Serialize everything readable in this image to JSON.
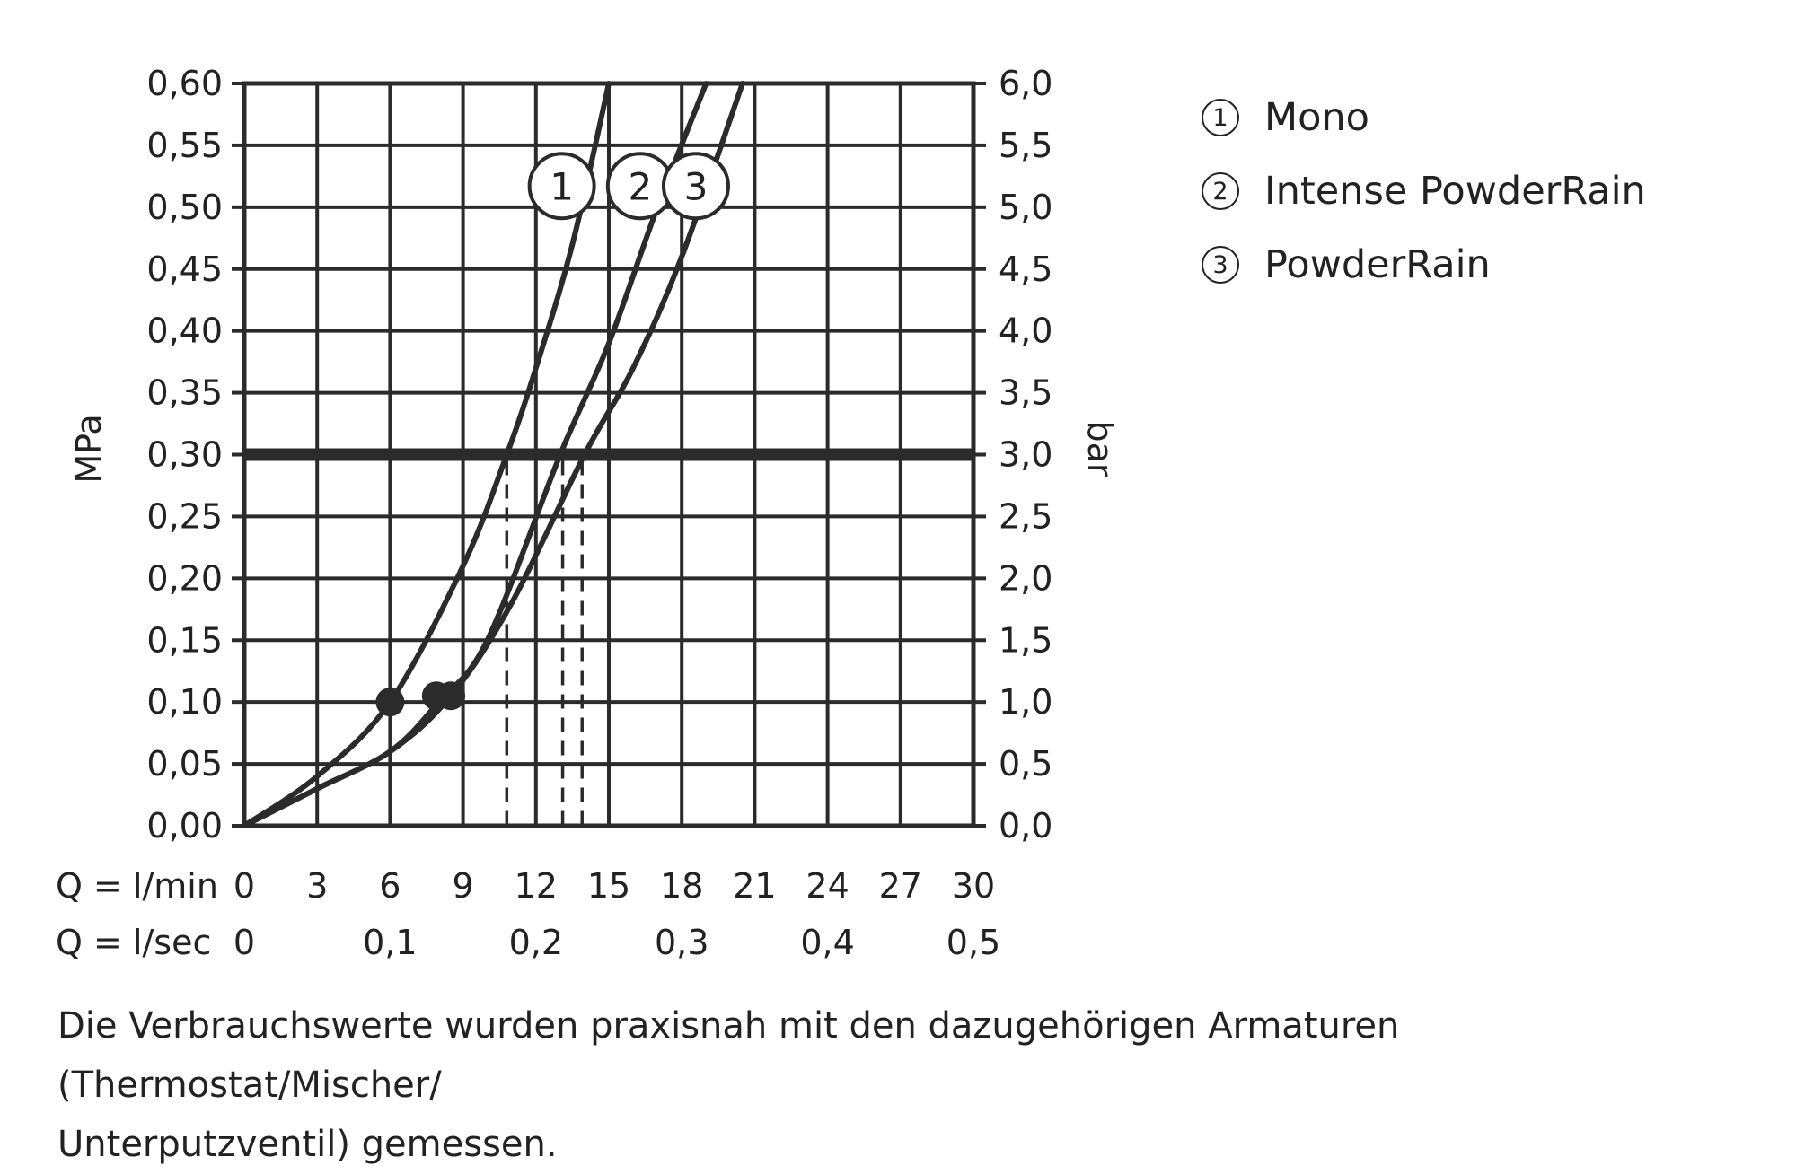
{
  "chart_data": {
    "type": "line",
    "xlabel_primary": "Q = l/min",
    "xlabel_secondary": "Q = l/sec",
    "ylabel_left": "MPa",
    "ylabel_right": "bar",
    "xlim": [
      0,
      30
    ],
    "ylim": [
      0,
      0.6
    ],
    "x_ticks": [
      "0",
      "3",
      "6",
      "9",
      "12",
      "15",
      "18",
      "21",
      "24",
      "27",
      "30"
    ],
    "x_ticks_secondary": [
      {
        "value": 0,
        "label": "0"
      },
      {
        "value": 6,
        "label": "0,1"
      },
      {
        "value": 12,
        "label": "0,2"
      },
      {
        "value": 18,
        "label": "0,3"
      },
      {
        "value": 24,
        "label": "0,4"
      },
      {
        "value": 30,
        "label": "0,5"
      }
    ],
    "y_ticks_left": [
      "0,00",
      "0,05",
      "0,10",
      "0,15",
      "0,20",
      "0,25",
      "0,30",
      "0,35",
      "0,40",
      "0,45",
      "0,50",
      "0,55",
      "0,60"
    ],
    "y_ticks_right": [
      "0,0",
      "0,5",
      "1,0",
      "1,5",
      "2,0",
      "2,5",
      "3,0",
      "3,5",
      "4,0",
      "4,5",
      "5,0",
      "5,5",
      "6,0"
    ],
    "grid": true,
    "reference_line_y": 0.3,
    "series": [
      {
        "label": "1",
        "x": [
          0,
          3,
          6,
          9,
          10.8,
          12,
          13.5,
          15
        ],
        "y": [
          0,
          0.04,
          0.1,
          0.21,
          0.3,
          0.37,
          0.47,
          0.6
        ],
        "min_point": [
          6,
          0.1
        ],
        "drop_x": 10.8
      },
      {
        "label": "2",
        "x": [
          0,
          3,
          6,
          8,
          10,
          13,
          15,
          17,
          19
        ],
        "y": [
          0,
          0.03,
          0.06,
          0.1,
          0.15,
          0.3,
          0.39,
          0.5,
          0.6
        ],
        "min_point": [
          7.9,
          0.105
        ],
        "drop_x": 13.1
      },
      {
        "label": "3",
        "x": [
          0,
          3,
          6,
          8.5,
          11,
          14,
          16,
          18,
          20.5
        ],
        "y": [
          0,
          0.03,
          0.06,
          0.105,
          0.18,
          0.3,
          0.37,
          0.46,
          0.6
        ],
        "min_point": [
          8.5,
          0.105
        ],
        "drop_x": 13.9
      }
    ]
  },
  "legend": [
    {
      "badge": "1",
      "label": "Mono"
    },
    {
      "badge": "2",
      "label": "Intense PowderRain"
    },
    {
      "badge": "3",
      "label": "PowderRain"
    }
  ],
  "footnote": {
    "line1": "Die Verbrauchswerte wurden praxisnah mit den dazugehörigen Armaturen (Thermostat/Mischer/",
    "line2": "Unterputzventil) gemessen."
  }
}
